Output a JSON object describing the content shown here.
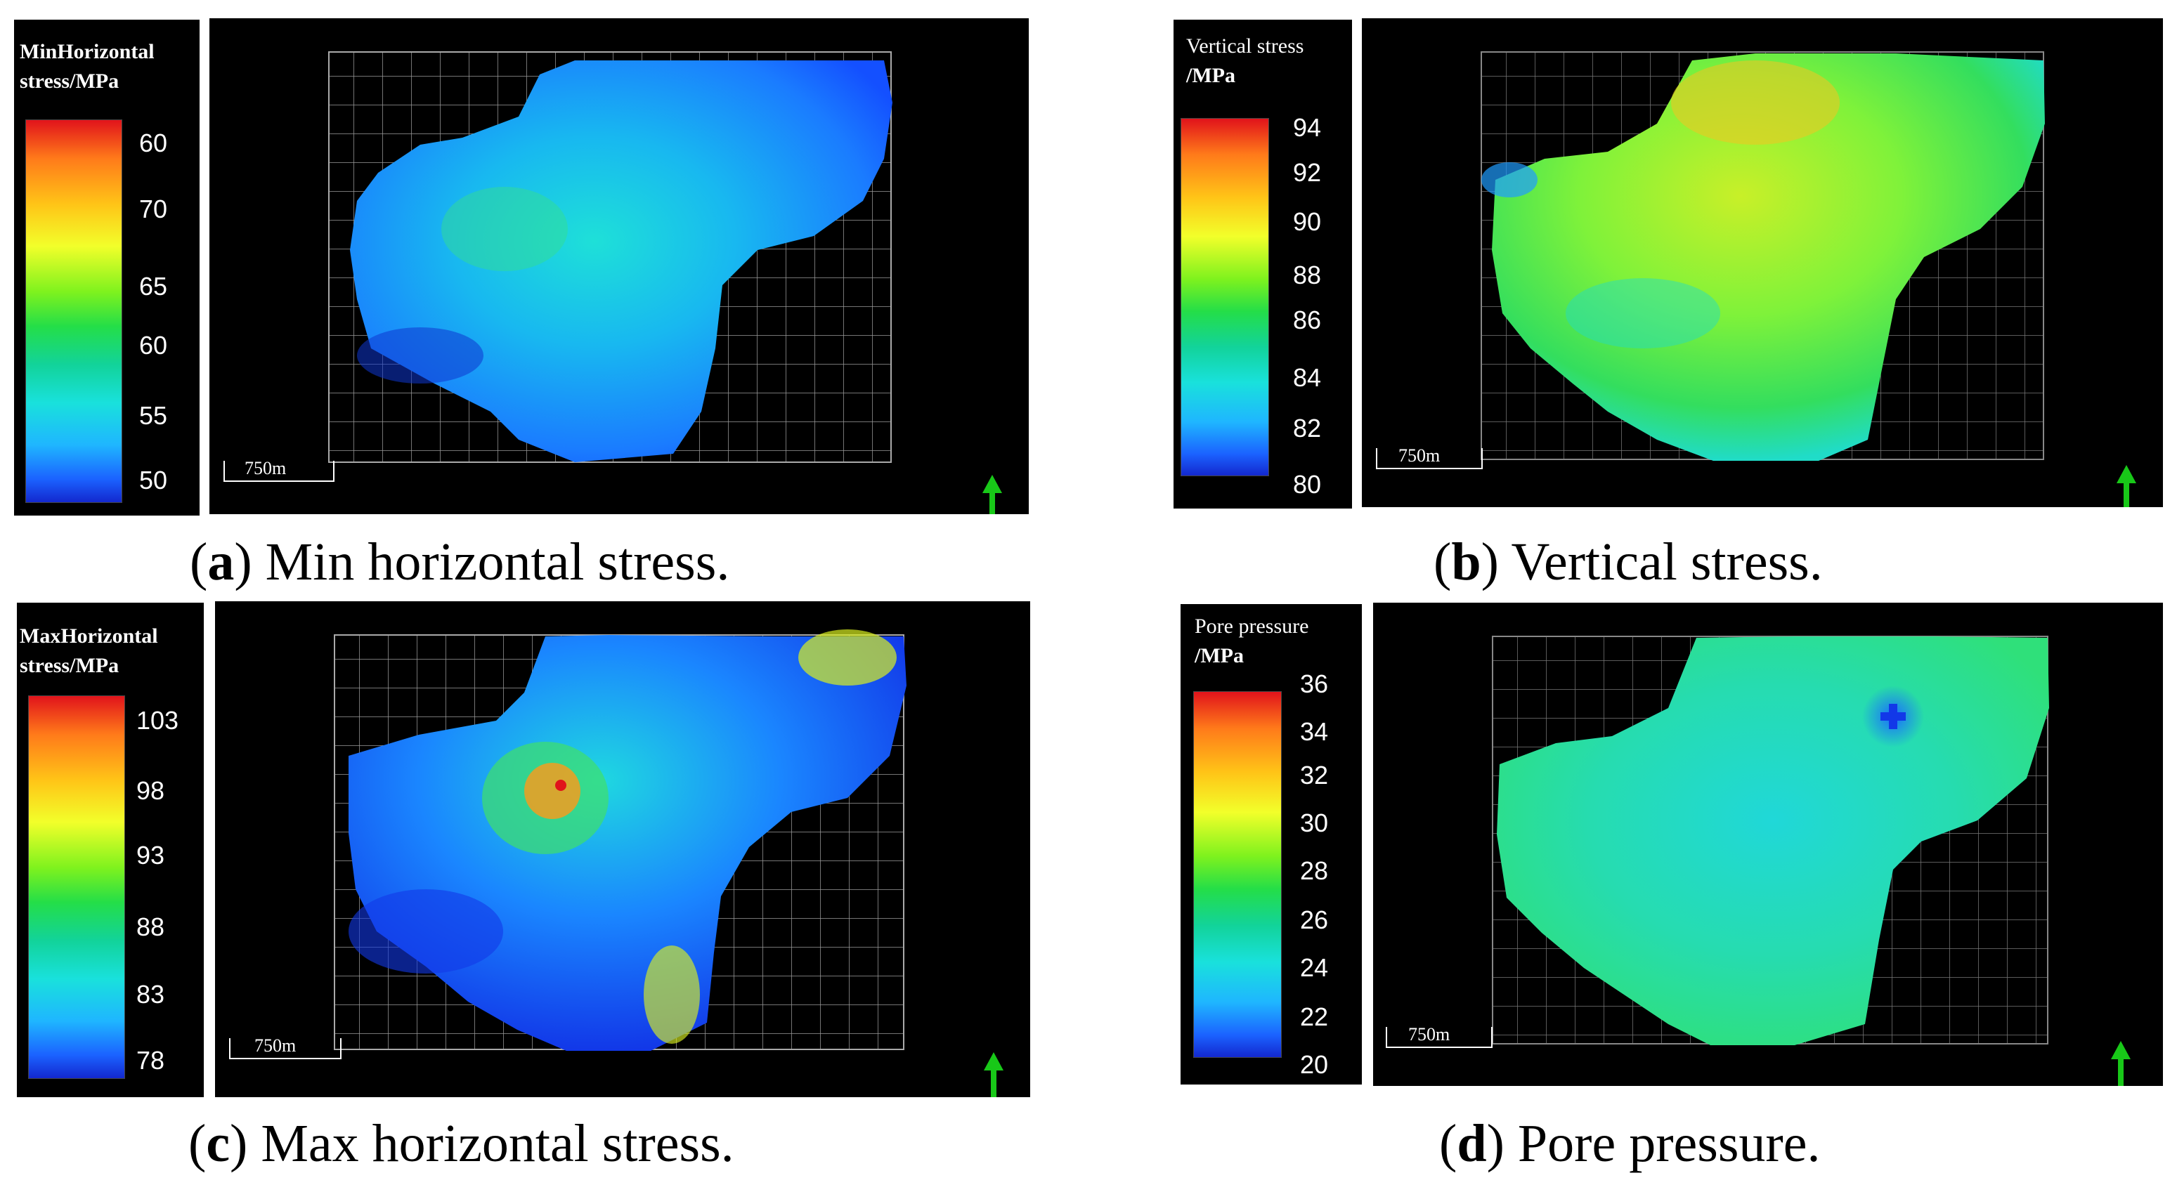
{
  "panels": [
    {
      "letter": "a",
      "caption": "Min horizontal stress.",
      "legend_title": [
        "MinHorizontal",
        "stress/MPa"
      ],
      "ticks": [
        "60",
        "70",
        "65",
        "60",
        "55",
        "50"
      ],
      "scale_label": "750m",
      "map_colors": [
        "#1a7cff",
        "#18b8f0",
        "#1ee0d8",
        "#36e08a",
        "#1450ff",
        "#0f36d0"
      ]
    },
    {
      "letter": "b",
      "caption": "Vertical stress.",
      "legend_title": [
        "Vertical stress",
        "/MPa"
      ],
      "ticks": [
        "94",
        "92",
        "90",
        "88",
        "86",
        "84",
        "82",
        "80"
      ],
      "scale_label": "750m",
      "map_colors": [
        "#7ff23a",
        "#c8f028",
        "#33de5e",
        "#20dcc8",
        "#f2c420",
        "#1f9cff"
      ]
    },
    {
      "letter": "c",
      "caption": "Max horizontal stress.",
      "legend_title": [
        "MaxHorizontal",
        "stress/MPa"
      ],
      "ticks": [
        "103",
        "98",
        "93",
        "88",
        "83",
        "78"
      ],
      "scale_label": "750m",
      "map_colors": [
        "#1238e8",
        "#1a86ff",
        "#1fd8e0",
        "#3ee06a",
        "#d8f020",
        "#ff9a18"
      ]
    },
    {
      "letter": "d",
      "caption": "Pore pressure.",
      "legend_title": [
        "Pore  pressure",
        "/MPa"
      ],
      "ticks": [
        "36",
        "34",
        "32",
        "30",
        "28",
        "26",
        "24",
        "22",
        "20"
      ],
      "scale_label": "750m",
      "map_colors": [
        "#2fe07a",
        "#26dcb0",
        "#20d8d8",
        "#3be055",
        "#1a6cff",
        "#20d6c0"
      ]
    }
  ],
  "north_arrow_color": "#18c818"
}
